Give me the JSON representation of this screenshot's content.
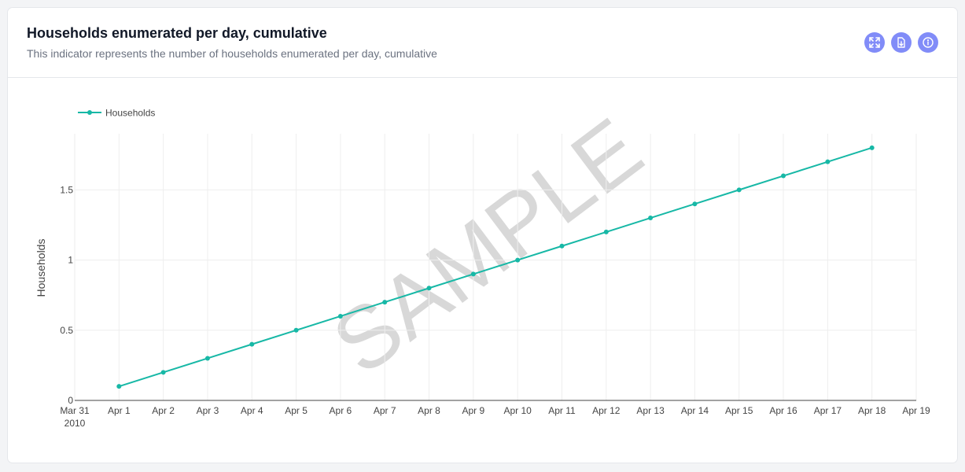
{
  "header": {
    "title": "Households enumerated per day, cumulative",
    "subtitle": "This indicator represents the number of households enumerated per day, cumulative"
  },
  "actions": [
    {
      "name": "expand-icon",
      "label": "Expand"
    },
    {
      "name": "export-icon",
      "label": "Export"
    },
    {
      "name": "info-icon",
      "label": "Info"
    }
  ],
  "watermark": "SAMPLE",
  "colors": {
    "series": "#17b8a6",
    "action_button": "#818cf8"
  },
  "chart_data": {
    "type": "line",
    "ylabel": "Households",
    "xlabel": "",
    "x_ticks": [
      "Mar 31\n2010",
      "Apr 1",
      "Apr 2",
      "Apr 3",
      "Apr 4",
      "Apr 5",
      "Apr 6",
      "Apr 7",
      "Apr 8",
      "Apr 9",
      "Apr 10",
      "Apr 11",
      "Apr 12",
      "Apr 13",
      "Apr 14",
      "Apr 15",
      "Apr 16",
      "Apr 17",
      "Apr 18",
      "Apr 19"
    ],
    "y_ticks": [
      "0",
      "0.5",
      "1",
      "1.5"
    ],
    "y_tick_values": [
      0,
      0.5,
      1,
      1.5
    ],
    "ylim": [
      0,
      1.9
    ],
    "xlim": [
      "2010-03-31",
      "2010-04-19"
    ],
    "legend": "top-left",
    "grid": true,
    "series": [
      {
        "name": "Households",
        "x": [
          "2010-04-01",
          "2010-04-02",
          "2010-04-03",
          "2010-04-04",
          "2010-04-05",
          "2010-04-06",
          "2010-04-07",
          "2010-04-08",
          "2010-04-09",
          "2010-04-10",
          "2010-04-11",
          "2010-04-12",
          "2010-04-13",
          "2010-04-14",
          "2010-04-15",
          "2010-04-16",
          "2010-04-17",
          "2010-04-18"
        ],
        "y": [
          0.1,
          0.2,
          0.3,
          0.4,
          0.5,
          0.6,
          0.7,
          0.8,
          0.9,
          1.0,
          1.1,
          1.2,
          1.3,
          1.4,
          1.5,
          1.6,
          1.7,
          1.8
        ]
      }
    ]
  }
}
